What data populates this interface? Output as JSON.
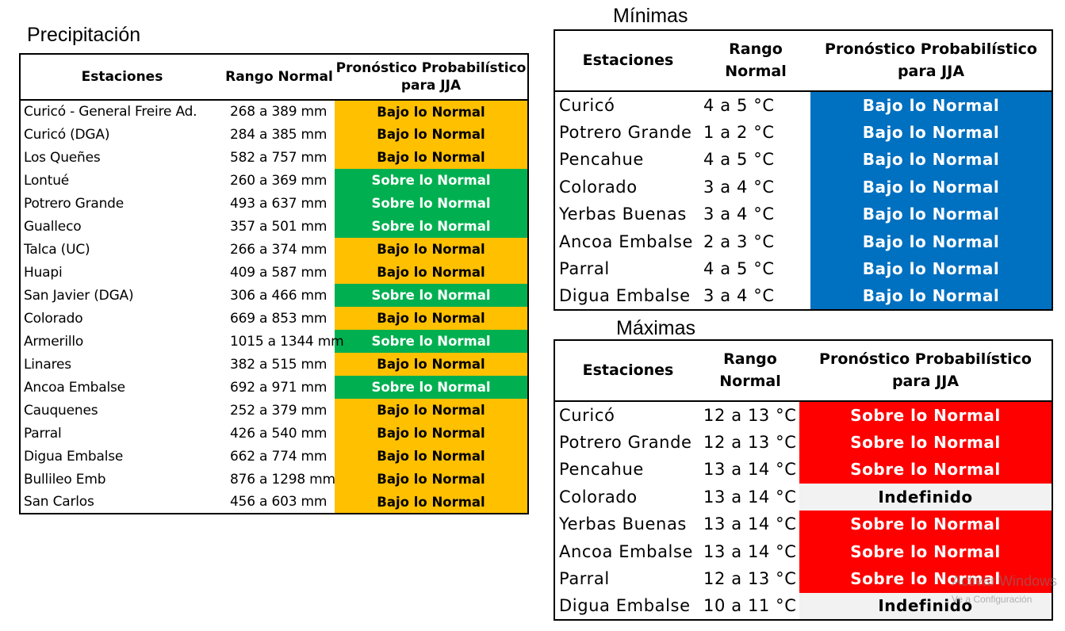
{
  "colors": {
    "bajo_precip": "#ffc000",
    "sobre_precip": "#00b050",
    "bajo_temp": "#0070c0",
    "sobre_temp": "#ff0000",
    "indefinido": "#f2f2f2"
  },
  "precipitacion": {
    "title": "Precipitación",
    "headers": {
      "estaciones": "Estaciones",
      "rango": "Rango Normal",
      "pronostico": "Pronóstico Probabilístico para JJA"
    },
    "rows": [
      {
        "estacion": "Curicó - General Freire Ad.",
        "rango": "268 a 389 mm",
        "pronostico": "Bajo lo Normal",
        "color": "#ffc000",
        "text_color": "#000000"
      },
      {
        "estacion": "Curicó (DGA)",
        "rango": "284 a 385 mm",
        "pronostico": "Bajo lo Normal",
        "color": "#ffc000",
        "text_color": "#000000"
      },
      {
        "estacion": "Los Queñes",
        "rango": "582 a 757 mm",
        "pronostico": "Bajo lo Normal",
        "color": "#ffc000",
        "text_color": "#000000"
      },
      {
        "estacion": "Lontué",
        "rango": "260 a 369 mm",
        "pronostico": "Sobre lo Normal",
        "color": "#00b050",
        "text_color": "#ffffff"
      },
      {
        "estacion": "Potrero Grande",
        "rango": "493 a 637 mm",
        "pronostico": "Sobre lo Normal",
        "color": "#00b050",
        "text_color": "#ffffff"
      },
      {
        "estacion": "Gualleco",
        "rango": "357 a 501 mm",
        "pronostico": "Sobre lo Normal",
        "color": "#00b050",
        "text_color": "#ffffff"
      },
      {
        "estacion": "Talca (UC)",
        "rango": "266 a 374 mm",
        "pronostico": "Bajo lo Normal",
        "color": "#ffc000",
        "text_color": "#000000"
      },
      {
        "estacion": "Huapi",
        "rango": "409 a 587 mm",
        "pronostico": "Bajo lo Normal",
        "color": "#ffc000",
        "text_color": "#000000"
      },
      {
        "estacion": "San Javier (DGA)",
        "rango": "306 a 466 mm",
        "pronostico": "Sobre lo Normal",
        "color": "#00b050",
        "text_color": "#ffffff"
      },
      {
        "estacion": "Colorado",
        "rango": "669 a 853 mm",
        "pronostico": "Bajo lo Normal",
        "color": "#ffc000",
        "text_color": "#000000"
      },
      {
        "estacion": "Armerillo",
        "rango": "1015 a 1344 mm",
        "pronostico": "Sobre lo Normal",
        "color": "#00b050",
        "text_color": "#ffffff"
      },
      {
        "estacion": "Linares",
        "rango": "382 a 515 mm",
        "pronostico": "Bajo lo Normal",
        "color": "#ffc000",
        "text_color": "#000000"
      },
      {
        "estacion": "Ancoa Embalse",
        "rango": "692 a 971 mm",
        "pronostico": "Sobre lo Normal",
        "color": "#00b050",
        "text_color": "#ffffff"
      },
      {
        "estacion": "Cauquenes",
        "rango": "252 a 379 mm",
        "pronostico": "Bajo lo Normal",
        "color": "#ffc000",
        "text_color": "#000000"
      },
      {
        "estacion": "Parral",
        "rango": "426 a 540 mm",
        "pronostico": "Bajo lo Normal",
        "color": "#ffc000",
        "text_color": "#000000"
      },
      {
        "estacion": "Digua Embalse",
        "rango": "662 a 774 mm",
        "pronostico": "Bajo lo Normal",
        "color": "#ffc000",
        "text_color": "#000000"
      },
      {
        "estacion": "Bullileo Emb",
        "rango": "876 a 1298 mm",
        "pronostico": "Bajo lo Normal",
        "color": "#ffc000",
        "text_color": "#000000"
      },
      {
        "estacion": "San Carlos",
        "rango": "456 a 603 mm",
        "pronostico": "Bajo lo Normal",
        "color": "#ffc000",
        "text_color": "#000000"
      }
    ]
  },
  "minimas": {
    "title": "Mínimas",
    "headers": {
      "estaciones": "Estaciones",
      "rango": "Rango Normal",
      "pronostico": "Pronóstico Probabilístico para JJA"
    },
    "rows": [
      {
        "estacion": "Curicó",
        "rango": "4 a 5 °C",
        "pronostico": "Bajo lo Normal",
        "color": "#0070c0",
        "text_color": "#ffffff"
      },
      {
        "estacion": "Potrero Grande",
        "rango": "1 a 2 °C",
        "pronostico": "Bajo lo Normal",
        "color": "#0070c0",
        "text_color": "#ffffff"
      },
      {
        "estacion": "Pencahue",
        "rango": "4 a 5 °C",
        "pronostico": "Bajo lo Normal",
        "color": "#0070c0",
        "text_color": "#ffffff"
      },
      {
        "estacion": "Colorado",
        "rango": "3 a 4 °C",
        "pronostico": "Bajo lo Normal",
        "color": "#0070c0",
        "text_color": "#ffffff"
      },
      {
        "estacion": "Yerbas Buenas",
        "rango": "3 a 4 °C",
        "pronostico": "Bajo lo Normal",
        "color": "#0070c0",
        "text_color": "#ffffff"
      },
      {
        "estacion": "Ancoa Embalse",
        "rango": "2 a 3 °C",
        "pronostico": "Bajo lo Normal",
        "color": "#0070c0",
        "text_color": "#ffffff"
      },
      {
        "estacion": "Parral",
        "rango": "4 a 5 °C",
        "pronostico": "Bajo lo Normal",
        "color": "#0070c0",
        "text_color": "#ffffff"
      },
      {
        "estacion": "Digua Embalse",
        "rango": "3 a 4 °C",
        "pronostico": "Bajo lo Normal",
        "color": "#0070c0",
        "text_color": "#ffffff"
      }
    ]
  },
  "maximas": {
    "title": "Máximas",
    "headers": {
      "estaciones": "Estaciones",
      "rango": "Rango Normal",
      "pronostico": "Pronóstico Probabilístico para JJA"
    },
    "rows": [
      {
        "estacion": "Curicó",
        "rango": "12 a 13 °C",
        "pronostico": "Sobre lo Normal",
        "color": "#ff0000",
        "text_color": "#ffffff"
      },
      {
        "estacion": "Potrero Grande",
        "rango": "12 a 13 °C",
        "pronostico": "Sobre lo Normal",
        "color": "#ff0000",
        "text_color": "#ffffff"
      },
      {
        "estacion": "Pencahue",
        "rango": "13 a 14 °C",
        "pronostico": "Sobre lo Normal",
        "color": "#ff0000",
        "text_color": "#ffffff"
      },
      {
        "estacion": "Colorado",
        "rango": "13 a 14 °C",
        "pronostico": "Indefinido",
        "color": "#f2f2f2",
        "text_color": "#000000"
      },
      {
        "estacion": "Yerbas Buenas",
        "rango": "13 a 14 °C",
        "pronostico": "Sobre lo Normal",
        "color": "#ff0000",
        "text_color": "#ffffff"
      },
      {
        "estacion": "Ancoa Embalse",
        "rango": "13 a 14 °C",
        "pronostico": "Sobre lo Normal",
        "color": "#ff0000",
        "text_color": "#ffffff"
      },
      {
        "estacion": "Parral",
        "rango": "12 a 13 °C",
        "pronostico": "Sobre lo Normal",
        "color": "#ff0000",
        "text_color": "#ffffff"
      },
      {
        "estacion": "Digua Embalse",
        "rango": "10 a 11 °C",
        "pronostico": "Indefinido",
        "color": "#f2f2f2",
        "text_color": "#000000"
      }
    ]
  },
  "watermark": {
    "line1": "Activar Windows",
    "line2": "Ve a Configuración"
  }
}
